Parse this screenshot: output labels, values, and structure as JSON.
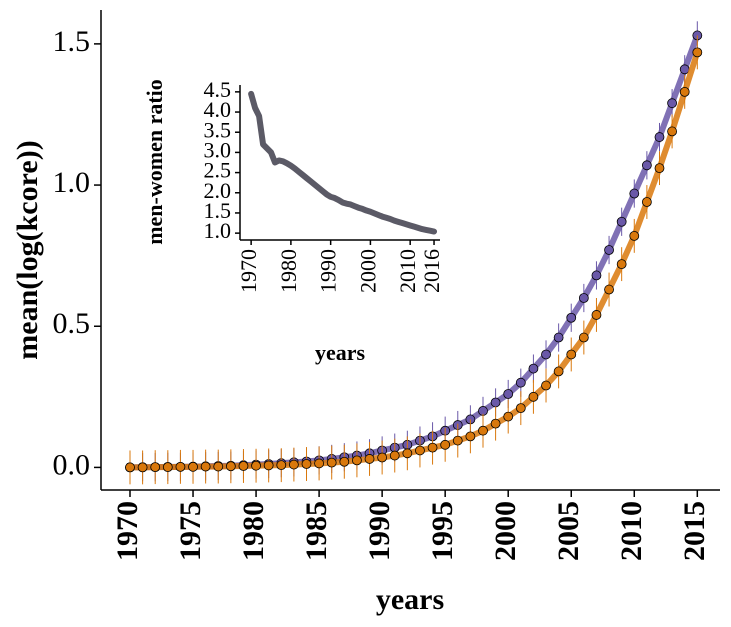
{
  "chart_data": [
    {
      "type": "line",
      "x_label": "years",
      "y_label": "mean(log(kcore))",
      "x": [
        1970,
        1971,
        1972,
        1973,
        1974,
        1975,
        1976,
        1977,
        1978,
        1979,
        1980,
        1981,
        1982,
        1983,
        1984,
        1985,
        1986,
        1987,
        1988,
        1989,
        1990,
        1991,
        1992,
        1993,
        1994,
        1995,
        1996,
        1997,
        1998,
        1999,
        2000,
        2001,
        2002,
        2003,
        2004,
        2005,
        2006,
        2007,
        2008,
        2009,
        2010,
        2011,
        2012,
        2013,
        2014,
        2015
      ],
      "series": [
        {
          "color": "#6a58a8",
          "error": 0.05,
          "values": [
            0.0,
            0.001,
            0.001,
            0.002,
            0.002,
            0.003,
            0.004,
            0.005,
            0.006,
            0.008,
            0.01,
            0.012,
            0.015,
            0.018,
            0.021,
            0.025,
            0.03,
            0.036,
            0.042,
            0.05,
            0.06,
            0.07,
            0.08,
            0.095,
            0.11,
            0.13,
            0.15,
            0.17,
            0.2,
            0.23,
            0.26,
            0.3,
            0.35,
            0.4,
            0.46,
            0.53,
            0.6,
            0.68,
            0.77,
            0.87,
            0.97,
            1.07,
            1.17,
            1.29,
            1.41,
            1.53
          ]
        },
        {
          "color": "#d9780c",
          "error": 0.06,
          "values": [
            0.0,
            0.0,
            0.001,
            0.001,
            0.002,
            0.002,
            0.003,
            0.003,
            0.004,
            0.005,
            0.006,
            0.007,
            0.008,
            0.01,
            0.012,
            0.014,
            0.017,
            0.02,
            0.025,
            0.03,
            0.035,
            0.042,
            0.05,
            0.06,
            0.07,
            0.08,
            0.095,
            0.11,
            0.13,
            0.155,
            0.18,
            0.21,
            0.25,
            0.29,
            0.34,
            0.4,
            0.46,
            0.54,
            0.63,
            0.72,
            0.82,
            0.94,
            1.06,
            1.19,
            1.33,
            1.47
          ]
        }
      ],
      "xlim": [
        1967.7,
        2016.8
      ],
      "xticks": [
        1970,
        1975,
        1980,
        1985,
        1990,
        1995,
        2000,
        2005,
        2010,
        2015
      ],
      "ylim": [
        -0.08,
        1.62
      ],
      "yticks": [
        {
          "value": 0,
          "label": "0.0"
        },
        0.5,
        {
          "value": 1,
          "label": "1.0"
        },
        1.5
      ]
    },
    {
      "type": "line",
      "x_label": "years",
      "y_label": "men-women ratio",
      "color": "#5b5a66",
      "x": [
        1970,
        1971,
        1972,
        1973,
        1974,
        1975,
        1976,
        1977,
        1978,
        1979,
        1980,
        1981,
        1982,
        1983,
        1984,
        1985,
        1986,
        1987,
        1988,
        1989,
        1990,
        1991,
        1992,
        1993,
        1994,
        1995,
        1996,
        1997,
        1998,
        1999,
        2000,
        2001,
        2002,
        2003,
        2004,
        2005,
        2006,
        2007,
        2008,
        2009,
        2010,
        2011,
        2012,
        2013,
        2014,
        2015,
        2016
      ],
      "values": [
        4.45,
        4.1,
        3.9,
        3.2,
        3.1,
        3.0,
        2.75,
        2.8,
        2.78,
        2.73,
        2.67,
        2.6,
        2.52,
        2.44,
        2.36,
        2.28,
        2.2,
        2.12,
        2.04,
        1.96,
        1.9,
        1.87,
        1.82,
        1.76,
        1.73,
        1.71,
        1.67,
        1.63,
        1.6,
        1.56,
        1.53,
        1.49,
        1.45,
        1.41,
        1.38,
        1.35,
        1.31,
        1.28,
        1.25,
        1.22,
        1.19,
        1.16,
        1.13,
        1.1,
        1.08,
        1.06,
        1.04
      ],
      "xlim": [
        1967.2,
        2017.5
      ],
      "xticks": [
        1970,
        1980,
        1990,
        2000,
        2010,
        2016
      ],
      "ylim": [
        0.83,
        4.67
      ],
      "yticks": [
        {
          "value": 1,
          "label": "1.0"
        },
        1.5,
        {
          "value": 2,
          "label": "2.0"
        },
        2.5,
        {
          "value": 3,
          "label": "3.0"
        },
        3.5,
        {
          "value": 4,
          "label": "4.0"
        },
        4.5
      ]
    }
  ]
}
